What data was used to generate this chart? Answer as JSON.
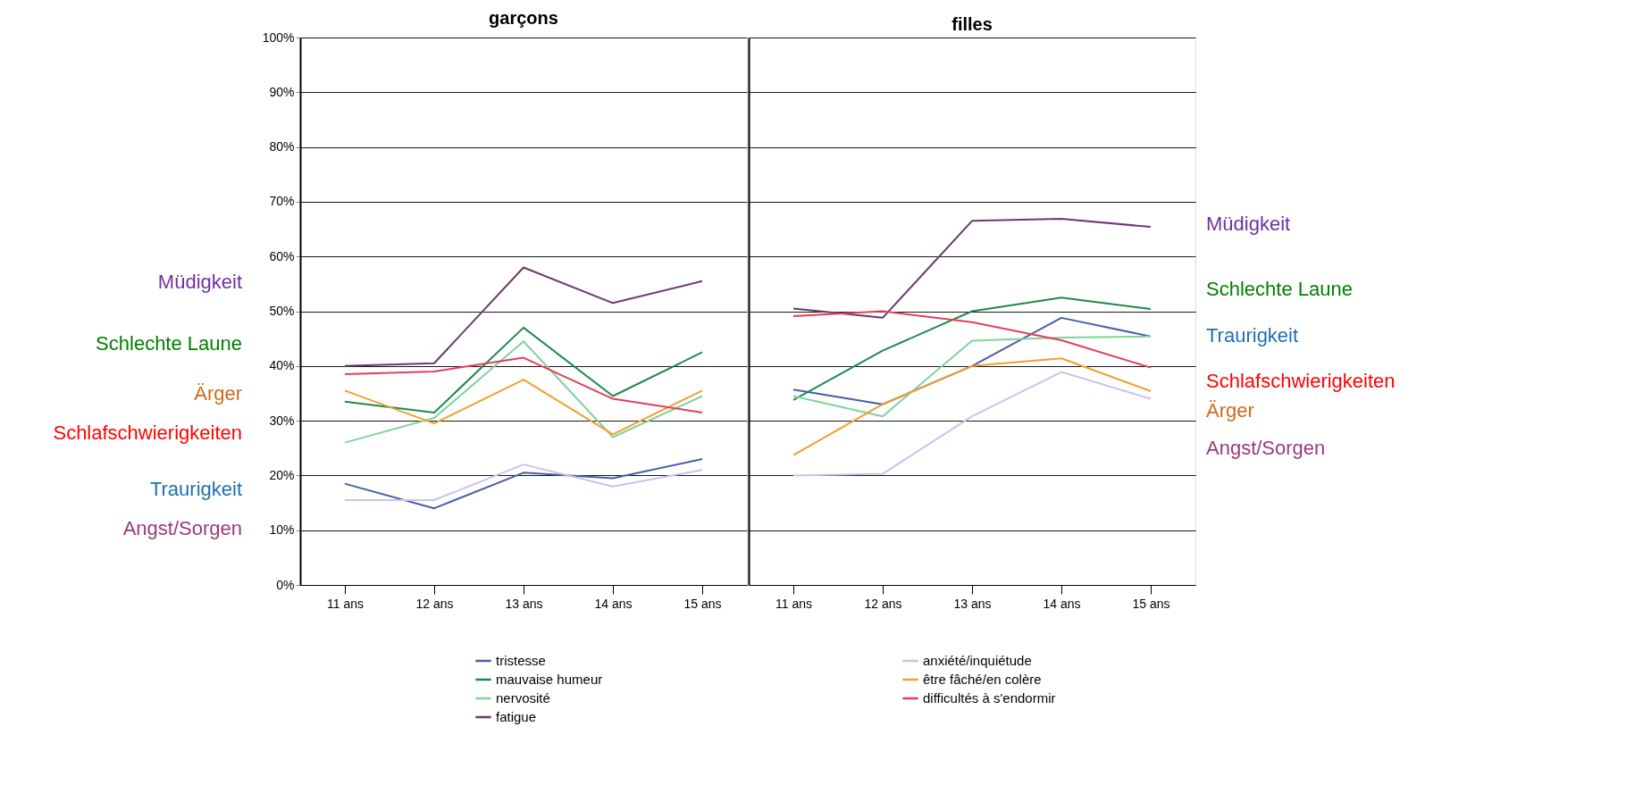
{
  "chart_data": [
    {
      "type": "line",
      "title": "garçons",
      "categories": [
        "11 ans",
        "12 ans",
        "13 ans",
        "14 ans",
        "15 ans"
      ],
      "series": [
        {
          "name": "tristesse",
          "color": "#4a5ea8",
          "values": [
            18.5,
            14,
            20.5,
            19.5,
            23
          ]
        },
        {
          "name": "mauvaise humeur",
          "color": "#1e8a4a",
          "values": [
            33.5,
            31.5,
            47,
            34.5,
            42.5
          ]
        },
        {
          "name": "nervosité",
          "color": "#7fd49a",
          "values": [
            26,
            30.5,
            44.5,
            27,
            34.5
          ]
        },
        {
          "name": "fatigue",
          "color": "#6b3a6b",
          "values": [
            40,
            40.5,
            58,
            51.5,
            55.5
          ]
        },
        {
          "name": "anxiété/inquiétude",
          "color": "#c9c3ec",
          "values": [
            15.5,
            15.5,
            22,
            18,
            21
          ]
        },
        {
          "name": "être fâché/en colère",
          "color": "#f0a030",
          "values": [
            35.5,
            29.5,
            37.5,
            27.5,
            35.5
          ]
        },
        {
          "name": "difficultés à s'endormir",
          "color": "#e0405a",
          "values": [
            38.5,
            39,
            41.5,
            34,
            31.5
          ]
        }
      ],
      "ylim": [
        0,
        100
      ],
      "yticks": [
        {
          "value": 0,
          "label": "0%"
        },
        {
          "value": 10,
          "label": "10%"
        },
        {
          "value": 20,
          "label": "20%"
        },
        {
          "value": 30,
          "label": "30%"
        },
        {
          "value": 40,
          "label": "40%"
        },
        {
          "value": 50,
          "label": "50%"
        },
        {
          "value": 60,
          "label": "60%"
        },
        {
          "value": 70,
          "label": "70%"
        },
        {
          "value": 80,
          "label": "80%"
        },
        {
          "value": 90,
          "label": "90%"
        },
        {
          "value": 100,
          "label": "100%"
        }
      ],
      "grid": "y",
      "legend": "bottom",
      "annotations": [
        "Müdigkeit",
        "Schlechte Laune",
        "Ärger",
        "Schlafschwierigkeiten",
        "Traurigkeit",
        "Angst/Sorgen"
      ]
    },
    {
      "type": "line",
      "title": "filles",
      "categories": [
        "11 ans",
        "12 ans",
        "13 ans",
        "14 ans",
        "15 ans"
      ],
      "series": [
        {
          "name": "tristesse",
          "color": "#4a5ea8",
          "values": [
            35.7,
            33,
            40,
            48.8,
            45.4
          ]
        },
        {
          "name": "mauvaise humeur",
          "color": "#1e8a4a",
          "values": [
            33.8,
            42.8,
            50,
            52.5,
            50.4
          ]
        },
        {
          "name": "nervosité",
          "color": "#7fd49a",
          "values": [
            34.5,
            30.8,
            44.6,
            45.2,
            45.4
          ]
        },
        {
          "name": "fatigue",
          "color": "#6b3a6b",
          "values": [
            50.5,
            48.8,
            66.5,
            66.9,
            65.4
          ]
        },
        {
          "name": "anxiété/inquiétude",
          "color": "#c9c3ec",
          "values": [
            20,
            20.3,
            30.8,
            38.9,
            34
          ]
        },
        {
          "name": "être fâché/en colère",
          "color": "#f0a030",
          "values": [
            23.7,
            33,
            40,
            41.4,
            35.4
          ]
        },
        {
          "name": "difficultés à s'endormir",
          "color": "#e0405a",
          "values": [
            49.1,
            50,
            48,
            44.7,
            39.7
          ]
        }
      ],
      "ylim": [
        0,
        100
      ],
      "yticks": [
        {
          "value": 0,
          "label": null
        },
        {
          "value": 10,
          "label": null
        },
        {
          "value": 20,
          "label": null
        },
        {
          "value": 30,
          "label": null
        },
        {
          "value": 40,
          "label": null
        },
        {
          "value": 50,
          "label": null
        },
        {
          "value": 60,
          "label": null
        },
        {
          "value": 70,
          "label": null
        },
        {
          "value": 80,
          "label": null
        },
        {
          "value": 90,
          "label": null
        },
        {
          "value": 100,
          "label": null
        }
      ],
      "grid": "y",
      "legend": "bottom",
      "tick_labels": "x",
      "annotations": [
        "Müdigkeit",
        "Schlechte Laune",
        "Traurigkeit",
        "Schlafschwierigkeiten",
        "Ärger",
        "Angst/Sorgen"
      ]
    }
  ]
}
